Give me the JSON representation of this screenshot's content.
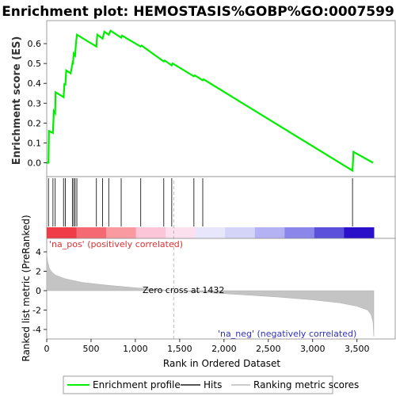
{
  "chart_data": {
    "type": "line",
    "title": "Enrichment plot: HEMOSTASIS%GOBP%GO:0007599",
    "es_panel": {
      "ylabel": "Enrichment score (ES)",
      "ylim": [
        -0.05,
        0.7
      ],
      "yticks": [
        0.0,
        0.1,
        0.2,
        0.3,
        0.4,
        0.5,
        0.6
      ],
      "ytick_labels": [
        "0.0",
        "0.1",
        "0.2",
        "0.3",
        "0.4",
        "0.5",
        "0.6"
      ],
      "series": [
        {
          "name": "Enrichment profile",
          "color": "#00ee00",
          "x": [
            0,
            20,
            25,
            70,
            80,
            95,
            100,
            190,
            200,
            210,
            220,
            270,
            290,
            295,
            305,
            320,
            330,
            340,
            560,
            570,
            630,
            650,
            700,
            720,
            840,
            850,
            1060,
            1070,
            1320,
            1330,
            1410,
            1420,
            1660,
            1670,
            1760,
            1770,
            3450,
            3460,
            3680
          ],
          "y": [
            0.0,
            0.0,
            0.16,
            0.15,
            0.26,
            0.25,
            0.355,
            0.33,
            0.4,
            0.39,
            0.465,
            0.45,
            0.5,
            0.495,
            0.55,
            0.54,
            0.6,
            0.645,
            0.585,
            0.645,
            0.625,
            0.66,
            0.645,
            0.665,
            0.63,
            0.64,
            0.585,
            0.59,
            0.51,
            0.515,
            0.49,
            0.5,
            0.435,
            0.44,
            0.415,
            0.42,
            -0.04,
            0.055,
            0.0
          ]
        }
      ]
    },
    "hits_panel": {
      "hit_positions": [
        20,
        70,
        95,
        190,
        210,
        290,
        305,
        320,
        340,
        560,
        630,
        700,
        840,
        1060,
        1320,
        1410,
        1660,
        1760,
        3450
      ]
    },
    "metric_panel": {
      "ylabel": "Ranked list metric (PreRanked)",
      "xlabel": "Rank in Ordered Dataset",
      "ylim": [
        -5,
        5
      ],
      "yticks": [
        -4,
        -2,
        0,
        2,
        4
      ],
      "ytick_labels": [
        "-4",
        "-2",
        "0",
        "2",
        "4"
      ],
      "xlim": [
        0,
        3700
      ],
      "xticks": [
        0,
        500,
        1000,
        1500,
        2000,
        2500,
        3000,
        3500
      ],
      "xtick_labels": [
        "0",
        "500",
        "1,000",
        "1,500",
        "2,000",
        "2,500",
        "3,000",
        "3,500"
      ],
      "zero_cross_label": "Zero cross at 1432",
      "zero_cross": 1432,
      "pos_label": "'na_pos' (positively correlated)",
      "neg_label": "'na_neg' (negatively correlated)",
      "metric_curve": {
        "x": [
          0,
          10,
          30,
          60,
          100,
          200,
          400,
          700,
          1000,
          1200,
          1432,
          1800,
          2200,
          2600,
          3000,
          3300,
          3500,
          3620,
          3660,
          3680,
          3690
        ],
        "y": [
          3.8,
          3.0,
          2.3,
          1.9,
          1.6,
          1.25,
          0.85,
          0.55,
          0.3,
          0.15,
          0.0,
          -0.2,
          -0.42,
          -0.65,
          -0.95,
          -1.25,
          -1.6,
          -2.0,
          -2.5,
          -3.2,
          -4.7
        ]
      }
    },
    "gradient_bar_colors": [
      "#f03c46",
      "#f56a72",
      "#f89aa0",
      "#fcc6d8",
      "#fce0ee",
      "#e8e6fb",
      "#d4d4f8",
      "#b4b2f2",
      "#8a86ea",
      "#5a50dc",
      "#2a10c8"
    ],
    "legend": {
      "items": [
        {
          "label": "Enrichment profile",
          "color": "#00ee00"
        },
        {
          "label": "Hits",
          "color": "#555555"
        },
        {
          "label": "Ranking metric scores",
          "color": "#cccccc"
        }
      ]
    }
  }
}
